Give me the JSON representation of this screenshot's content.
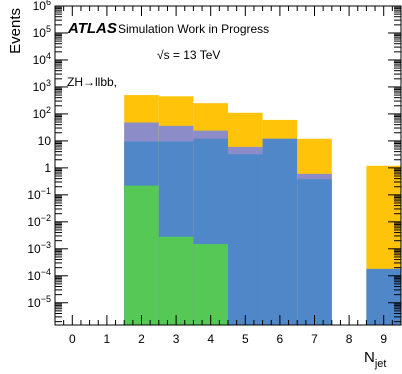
{
  "chart_data": {
    "type": "bar",
    "stacked": true,
    "yscale": "log",
    "ylim": [
      1.5e-06,
      1000000
    ],
    "xlim": [
      -0.5,
      9.5
    ],
    "ylabel": "Events",
    "xlabel_main": "N",
    "xlabel_sub": "jet",
    "grid": false,
    "x_ticks": [
      {
        "v": 0,
        "label": "0"
      },
      {
        "v": 1,
        "label": "1"
      },
      {
        "v": 2,
        "label": "2"
      },
      {
        "v": 3,
        "label": "3"
      },
      {
        "v": 4,
        "label": "4"
      },
      {
        "v": 5,
        "label": "5"
      },
      {
        "v": 6,
        "label": "6"
      },
      {
        "v": 7,
        "label": "7"
      },
      {
        "v": 8,
        "label": "8"
      },
      {
        "v": 9,
        "label": "9"
      }
    ],
    "y_ticks": [
      {
        "exp": 6,
        "base": "10",
        "sup": "6"
      },
      {
        "exp": 5,
        "base": "10",
        "sup": "5"
      },
      {
        "exp": 4,
        "base": "10",
        "sup": "4"
      },
      {
        "exp": 3,
        "base": "10",
        "sup": "3"
      },
      {
        "exp": 2,
        "base": "10",
        "sup": "2"
      },
      {
        "exp": 1,
        "base": "10",
        "sup": ""
      },
      {
        "exp": 0,
        "base": "1",
        "sup": ""
      },
      {
        "exp": -1,
        "base": "10",
        "sup": "−1"
      },
      {
        "exp": -2,
        "base": "10",
        "sup": "−2"
      },
      {
        "exp": -3,
        "base": "10",
        "sup": "−3"
      },
      {
        "exp": -4,
        "base": "10",
        "sup": "−4"
      },
      {
        "exp": -5,
        "base": "10",
        "sup": "−5"
      }
    ],
    "atlas_label": "ATLAS",
    "atlas_status": "Simulation Work in Progress",
    "energy_label": "√s = 13 TeV",
    "process_label": "ZH→llbb,",
    "bins": [
      {
        "x": 2,
        "green": 0.22,
        "blue": 9.5,
        "purple": 48,
        "orange": 500
      },
      {
        "x": 3,
        "green": 0.0028,
        "blue": 9.5,
        "purple": 36,
        "orange": 450
      },
      {
        "x": 4,
        "green": 0.0015,
        "blue": 12,
        "purple": 24,
        "orange": 250
      },
      {
        "x": 5,
        "green": null,
        "blue": 3.2,
        "purple": 6,
        "orange": 110
      },
      {
        "x": 6,
        "green": null,
        "blue": 12,
        "purple": 12,
        "orange": 60
      },
      {
        "x": 7,
        "green": null,
        "blue": 0.38,
        "purple": 0.6,
        "orange": 12
      },
      {
        "x": 9,
        "green": null,
        "blue": 0.00018,
        "purple": 0.00018,
        "orange": 1.2
      }
    ],
    "colors": {
      "green": "#55c855",
      "blue": "#5087c8",
      "purple": "#8c8cc8",
      "orange": "#ffc40a"
    }
  }
}
